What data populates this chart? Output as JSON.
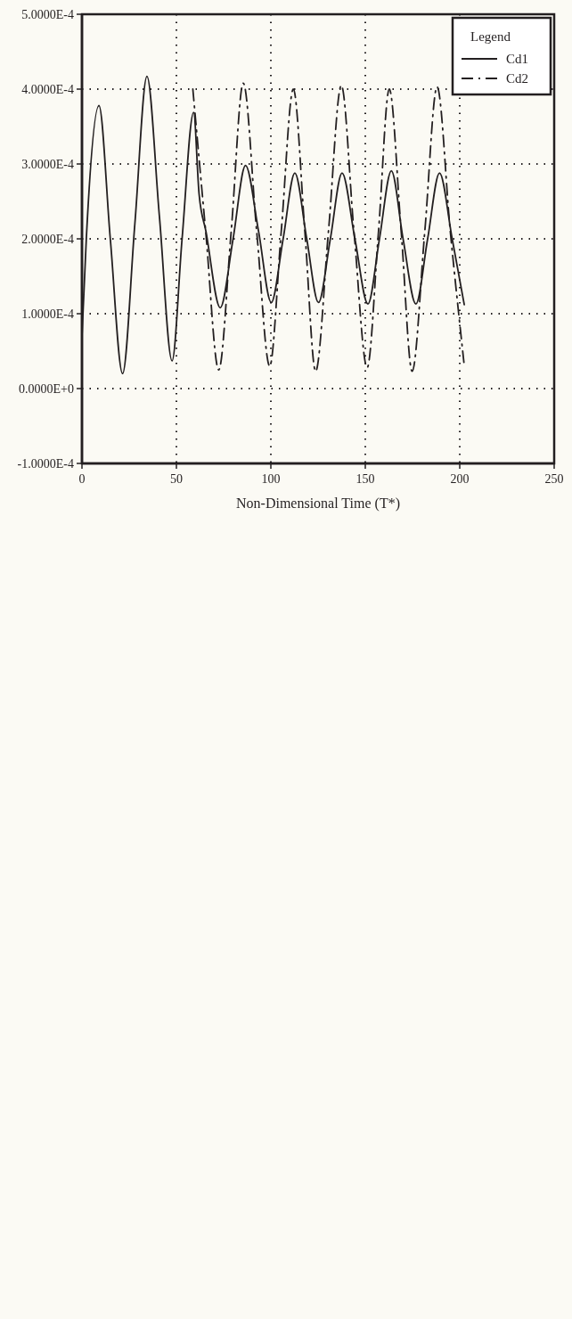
{
  "chart_data": {
    "type": "line",
    "xlabel": "Non-Dimensional Time (T*)",
    "legend_title": "Legend",
    "legend": "top right",
    "grid": true,
    "xlim": [
      0,
      250
    ],
    "xticks": [
      0,
      50,
      100,
      150,
      200,
      250
    ],
    "ylim": [
      -0.0001,
      0.0005
    ],
    "yticks": [
      {
        "value": -0.0001,
        "label": "-1.0000E-4"
      },
      {
        "value": 0,
        "label": "0.0000E+0"
      },
      {
        "value": 0.0001,
        "label": "1.0000E-4"
      },
      {
        "value": 0.0002,
        "label": "2.0000E-4"
      },
      {
        "value": 0.0003,
        "label": "3.0000E-4"
      },
      {
        "value": 0.0004,
        "label": "4.0000E-4"
      },
      {
        "value": 0.0005,
        "label": "5.0000E-4"
      }
    ],
    "series": [
      {
        "name": "Cd1",
        "color": "#231f20",
        "line_style": "solid",
        "x": [
          0,
          2.3,
          9,
          15,
          21.5,
          28,
          34.4,
          41,
          47.7,
          53,
          59.1,
          62,
          65.7,
          73.2,
          80,
          86.6,
          93.5,
          100.2,
          106.5,
          112.7,
          119,
          125.2,
          131.5,
          137.7,
          144.5,
          151.4,
          157.5,
          163.8,
          170,
          176.8,
          183,
          189.3,
          196,
          202.4
        ],
        "values": [
          7e-05,
          0.0002,
          0.000378,
          0.0002,
          2e-05,
          0.00022,
          0.000417,
          0.00023,
          3.7e-05,
          0.0002,
          0.000369,
          0.00026,
          0.000209,
          0.000108,
          0.0002,
          0.000298,
          0.00021,
          0.000115,
          0.0002,
          0.000288,
          0.0002,
          0.000115,
          0.0002,
          0.000288,
          0.0002,
          0.000113,
          0.0002,
          0.000291,
          0.0002,
          0.000113,
          0.0002,
          0.000288,
          0.0002,
          0.000112
        ]
      },
      {
        "name": "Cd2",
        "color": "#231f20",
        "line_style": "dashed",
        "x": [
          58.7,
          65.5,
          72.4,
          79,
          85.4,
          92.5,
          99.4,
          105.5,
          111.9,
          118,
          123.7,
          130.5,
          137.3,
          144,
          151,
          157,
          162.7,
          169,
          174.8,
          181.5,
          188,
          195,
          202.2
        ],
        "values": [
          0.0004,
          0.00021,
          2.5e-05,
          0.00021,
          0.000408,
          0.00021,
          3e-05,
          0.00021,
          0.0004,
          0.00021,
          2.3e-05,
          0.00021,
          0.000405,
          0.00021,
          2.8e-05,
          0.00021,
          0.0004,
          0.00021,
          2.3e-05,
          0.00021,
          0.000403,
          0.00021,
          3.5e-05
        ]
      }
    ]
  }
}
